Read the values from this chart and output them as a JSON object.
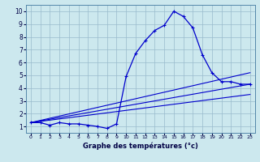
{
  "xlabel": "Graphe des températures (°c)",
  "bg_color": "#cce8ee",
  "line_color": "#0000cc",
  "grid_color": "#99bbcc",
  "xlim": [
    -0.5,
    23.5
  ],
  "ylim": [
    0.5,
    10.5
  ],
  "xticks": [
    0,
    1,
    2,
    3,
    4,
    5,
    6,
    7,
    8,
    9,
    10,
    11,
    12,
    13,
    14,
    15,
    16,
    17,
    18,
    19,
    20,
    21,
    22,
    23
  ],
  "yticks": [
    1,
    2,
    3,
    4,
    5,
    6,
    7,
    8,
    9,
    10
  ],
  "main_x": [
    0,
    1,
    2,
    3,
    4,
    5,
    6,
    7,
    8,
    9,
    10,
    11,
    12,
    13,
    14,
    15,
    16,
    17,
    18,
    19,
    20,
    21,
    22,
    23
  ],
  "main_y": [
    1.3,
    1.3,
    1.1,
    1.3,
    1.2,
    1.2,
    1.1,
    1.0,
    0.85,
    1.2,
    4.9,
    6.7,
    7.7,
    8.5,
    8.9,
    10.0,
    9.6,
    8.7,
    6.6,
    5.2,
    4.5,
    4.5,
    4.3,
    4.3
  ],
  "line2_x": [
    0,
    23
  ],
  "line2_y": [
    1.3,
    4.3
  ],
  "line3_x": [
    0,
    23
  ],
  "line3_y": [
    1.3,
    3.5
  ],
  "line4_x": [
    0,
    23
  ],
  "line4_y": [
    1.3,
    5.2
  ],
  "xlabel_fontsize": 6,
  "tick_fontsize_x": 4.5,
  "tick_fontsize_y": 5.5
}
